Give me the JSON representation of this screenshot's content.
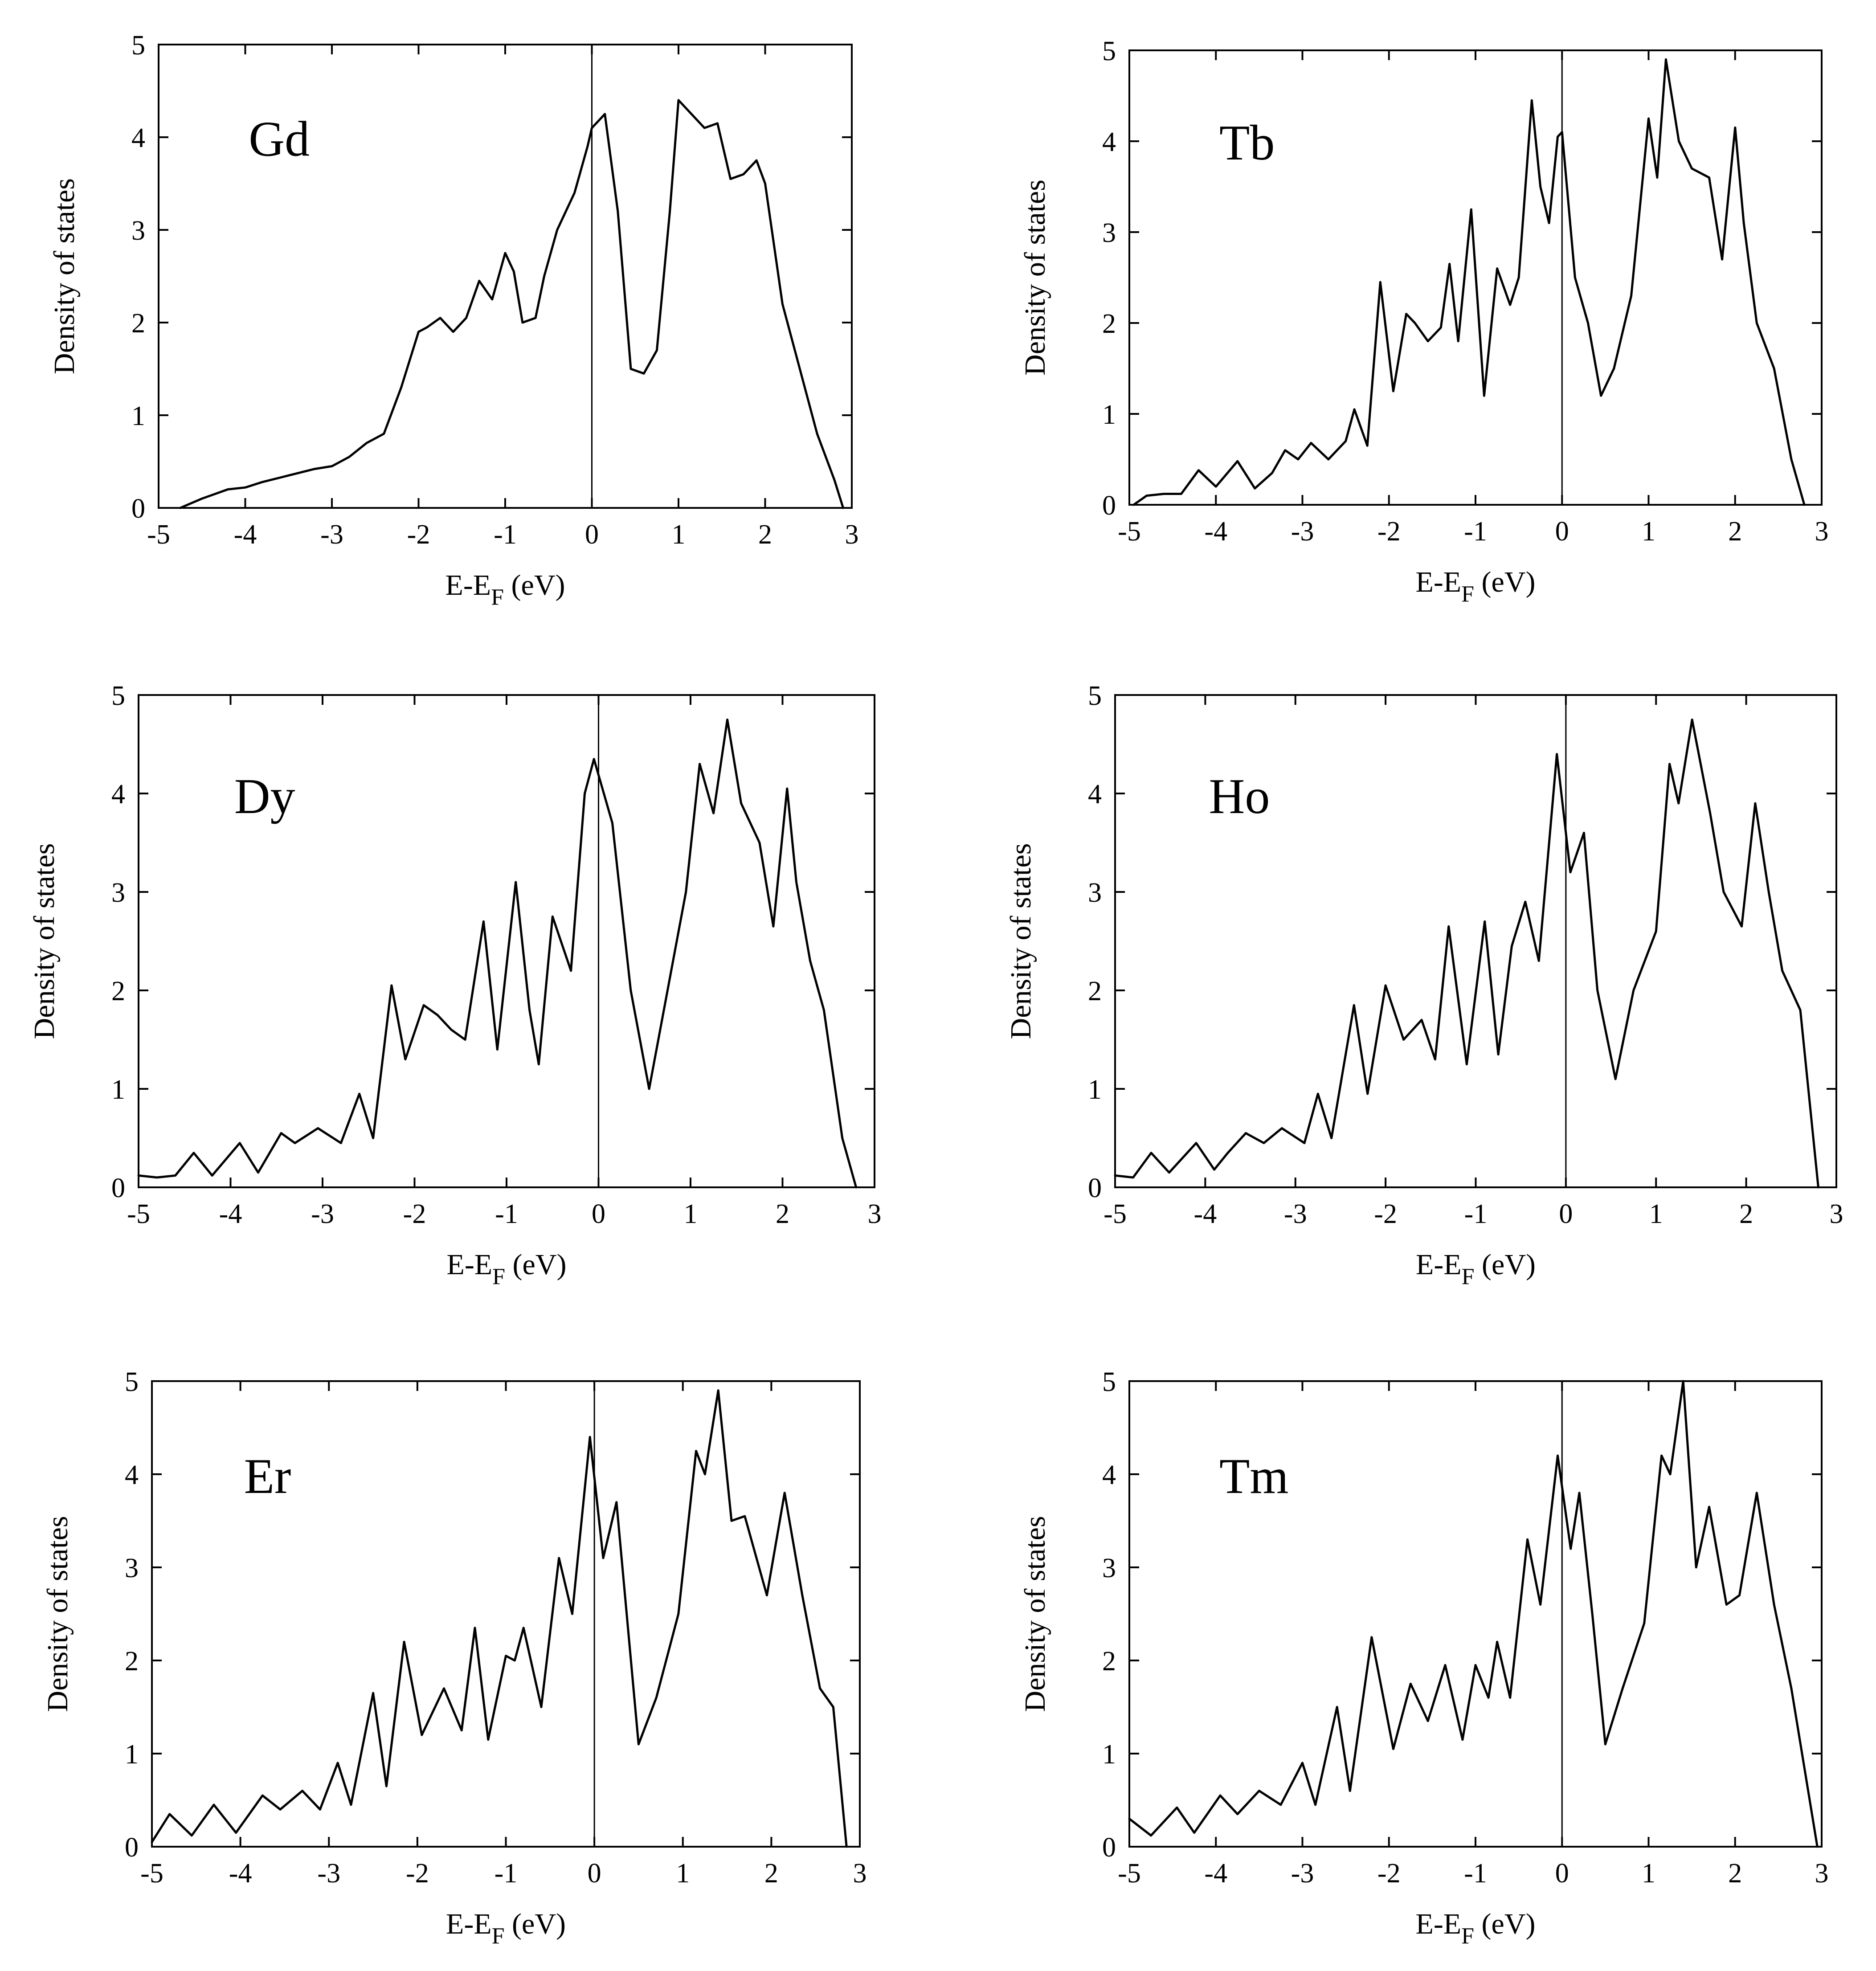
{
  "chart_data": [
    {
      "type": "line",
      "panel_label": "Gd",
      "xlabel": "E-E",
      "xlabel_sub": "F",
      "xlabel_unit": " (eV)",
      "ylabel": "Density of  states",
      "xlim": [
        -5,
        3
      ],
      "ylim": [
        0,
        5
      ],
      "xticks": [
        "-5",
        "-4",
        "-3",
        "-2",
        "-1",
        "0",
        "1",
        "2",
        "3"
      ],
      "yticks": [
        "0",
        "1",
        "2",
        "3",
        "4",
        "5"
      ],
      "fermi_line_x": 0,
      "series": [
        {
          "name": "Gd",
          "x": [
            -4.75,
            -4.5,
            -4.2,
            -4.0,
            -3.8,
            -3.5,
            -3.2,
            -3.0,
            -2.8,
            -2.6,
            -2.4,
            -2.2,
            -2.0,
            -1.9,
            -1.75,
            -1.6,
            -1.45,
            -1.3,
            -1.15,
            -1.0,
            -0.9,
            -0.8,
            -0.65,
            -0.55,
            -0.4,
            -0.2,
            -0.05,
            0.0,
            0.15,
            0.3,
            0.45,
            0.6,
            0.75,
            0.9,
            1.0,
            1.1,
            1.3,
            1.45,
            1.6,
            1.75,
            1.9,
            2.0,
            2.2,
            2.4,
            2.6,
            2.8,
            2.9
          ],
          "y": [
            0.0,
            0.1,
            0.2,
            0.22,
            0.28,
            0.35,
            0.42,
            0.45,
            0.55,
            0.7,
            0.8,
            1.3,
            1.9,
            1.95,
            2.05,
            1.9,
            2.05,
            2.45,
            2.25,
            2.75,
            2.55,
            2.0,
            2.05,
            2.5,
            3.0,
            3.4,
            3.9,
            4.1,
            4.25,
            3.2,
            1.5,
            1.45,
            1.7,
            3.2,
            4.4,
            4.3,
            4.1,
            4.15,
            3.55,
            3.6,
            3.75,
            3.5,
            2.2,
            1.5,
            0.8,
            0.3,
            0.0
          ]
        }
      ]
    },
    {
      "type": "line",
      "panel_label": "Tb",
      "xlabel": "E-E",
      "xlabel_sub": "F",
      "xlabel_unit": " (eV)",
      "ylabel": "Density of  states",
      "xlim": [
        -5,
        3
      ],
      "ylim": [
        0,
        5
      ],
      "xticks": [
        "-5",
        "-4",
        "-3",
        "-2",
        "-1",
        "0",
        "1",
        "2",
        "3"
      ],
      "yticks": [
        "0",
        "1",
        "2",
        "3",
        "4",
        "5"
      ],
      "fermi_line_x": 0,
      "series": [
        {
          "name": "Tb",
          "x": [
            -4.95,
            -4.8,
            -4.6,
            -4.4,
            -4.2,
            -4.0,
            -3.75,
            -3.55,
            -3.35,
            -3.2,
            -3.05,
            -2.9,
            -2.7,
            -2.5,
            -2.4,
            -2.25,
            -2.1,
            -1.95,
            -1.8,
            -1.7,
            -1.55,
            -1.4,
            -1.3,
            -1.2,
            -1.05,
            -0.9,
            -0.75,
            -0.6,
            -0.5,
            -0.35,
            -0.25,
            -0.15,
            -0.05,
            0.0,
            0.15,
            0.3,
            0.45,
            0.6,
            0.8,
            1.0,
            1.1,
            1.2,
            1.35,
            1.5,
            1.7,
            1.85,
            2.0,
            2.1,
            2.25,
            2.45,
            2.65,
            2.8
          ],
          "y": [
            0.0,
            0.1,
            0.12,
            0.12,
            0.38,
            0.2,
            0.48,
            0.18,
            0.35,
            0.6,
            0.5,
            0.68,
            0.5,
            0.7,
            1.05,
            0.65,
            2.45,
            1.25,
            2.1,
            2.0,
            1.8,
            1.95,
            2.65,
            1.8,
            3.25,
            1.2,
            2.6,
            2.2,
            2.5,
            4.45,
            3.5,
            3.1,
            4.05,
            4.1,
            2.5,
            2.0,
            1.2,
            1.5,
            2.3,
            4.25,
            3.6,
            4.9,
            4.0,
            3.7,
            3.6,
            2.7,
            4.15,
            3.1,
            2.0,
            1.5,
            0.5,
            0.0
          ]
        }
      ]
    },
    {
      "type": "line",
      "panel_label": "Dy",
      "xlabel": "E-E",
      "xlabel_sub": "F",
      "xlabel_unit": " (eV)",
      "ylabel": "Density of  states",
      "xlim": [
        -5,
        3
      ],
      "ylim": [
        0,
        5
      ],
      "xticks": [
        "-5",
        "-4",
        "-3",
        "-2",
        "-1",
        "0",
        "1",
        "2",
        "3"
      ],
      "yticks": [
        "0",
        "1",
        "2",
        "3",
        "4",
        "5"
      ],
      "fermi_line_x": 0,
      "series": [
        {
          "name": "Dy",
          "x": [
            -5.0,
            -4.8,
            -4.6,
            -4.4,
            -4.2,
            -3.9,
            -3.7,
            -3.45,
            -3.3,
            -3.05,
            -2.8,
            -2.6,
            -2.45,
            -2.25,
            -2.1,
            -1.9,
            -1.75,
            -1.6,
            -1.45,
            -1.25,
            -1.1,
            -0.9,
            -0.75,
            -0.65,
            -0.5,
            -0.3,
            -0.15,
            -0.05,
            0.15,
            0.35,
            0.55,
            0.75,
            0.95,
            1.1,
            1.25,
            1.4,
            1.55,
            1.75,
            1.9,
            2.05,
            2.15,
            2.3,
            2.45,
            2.65,
            2.8
          ],
          "y": [
            0.12,
            0.1,
            0.12,
            0.35,
            0.12,
            0.45,
            0.15,
            0.55,
            0.45,
            0.6,
            0.45,
            0.95,
            0.5,
            2.05,
            1.3,
            1.85,
            1.75,
            1.6,
            1.5,
            2.7,
            1.4,
            3.1,
            1.8,
            1.25,
            2.75,
            2.2,
            4.0,
            4.35,
            3.7,
            2.0,
            1.0,
            2.0,
            3.0,
            4.3,
            3.8,
            4.75,
            3.9,
            3.5,
            2.65,
            4.05,
            3.1,
            2.3,
            1.8,
            0.5,
            0.0
          ]
        }
      ]
    },
    {
      "type": "line",
      "panel_label": "Ho",
      "xlabel": "E-E",
      "xlabel_sub": "F",
      "xlabel_unit": " (eV)",
      "ylabel": "Density of  states",
      "xlim": [
        -5,
        3
      ],
      "ylim": [
        0,
        5
      ],
      "xticks": [
        "-5",
        "-4",
        "-3",
        "-2",
        "-1",
        "0",
        "1",
        "2",
        "3"
      ],
      "yticks": [
        "0",
        "1",
        "2",
        "3",
        "4",
        "5"
      ],
      "fermi_line_x": 0,
      "series": [
        {
          "name": "Ho",
          "x": [
            -5.0,
            -4.8,
            -4.6,
            -4.4,
            -4.1,
            -3.9,
            -3.75,
            -3.55,
            -3.35,
            -3.15,
            -2.9,
            -2.75,
            -2.6,
            -2.35,
            -2.2,
            -2.0,
            -1.8,
            -1.6,
            -1.45,
            -1.3,
            -1.1,
            -0.9,
            -0.75,
            -0.6,
            -0.45,
            -0.3,
            -0.1,
            0.05,
            0.2,
            0.35,
            0.55,
            0.75,
            1.0,
            1.15,
            1.25,
            1.4,
            1.6,
            1.75,
            1.95,
            2.1,
            2.25,
            2.4,
            2.6,
            2.8
          ],
          "y": [
            0.12,
            0.1,
            0.35,
            0.15,
            0.45,
            0.18,
            0.35,
            0.55,
            0.45,
            0.6,
            0.45,
            0.95,
            0.5,
            1.85,
            0.95,
            2.05,
            1.5,
            1.7,
            1.3,
            2.65,
            1.25,
            2.7,
            1.35,
            2.45,
            2.9,
            2.3,
            4.4,
            3.2,
            3.6,
            2.0,
            1.1,
            2.0,
            2.6,
            4.3,
            3.9,
            4.75,
            3.8,
            3.0,
            2.65,
            3.9,
            3.0,
            2.2,
            1.8,
            0.0
          ]
        }
      ]
    },
    {
      "type": "line",
      "panel_label": "Er",
      "xlabel": "E-E",
      "xlabel_sub": "F",
      "xlabel_unit": " (eV)",
      "ylabel": "Density of  states",
      "xlim": [
        -5,
        3
      ],
      "ylim": [
        0,
        5
      ],
      "xticks": [
        "-5",
        "-4",
        "-3",
        "-2",
        "-1",
        "0",
        "1",
        "2",
        "3"
      ],
      "yticks": [
        "0",
        "1",
        "2",
        "3",
        "4",
        "5"
      ],
      "fermi_line_x": 0,
      "series": [
        {
          "name": "Er",
          "x": [
            -5.0,
            -4.8,
            -4.55,
            -4.3,
            -4.05,
            -3.75,
            -3.55,
            -3.3,
            -3.1,
            -2.9,
            -2.75,
            -2.5,
            -2.35,
            -2.15,
            -1.95,
            -1.7,
            -1.5,
            -1.35,
            -1.2,
            -1.0,
            -0.9,
            -0.8,
            -0.6,
            -0.4,
            -0.25,
            -0.05,
            0.1,
            0.25,
            0.5,
            0.7,
            0.95,
            1.15,
            1.25,
            1.4,
            1.55,
            1.7,
            1.95,
            2.15,
            2.35,
            2.55,
            2.7,
            2.85
          ],
          "y": [
            0.05,
            0.35,
            0.12,
            0.45,
            0.15,
            0.55,
            0.4,
            0.6,
            0.4,
            0.9,
            0.45,
            1.65,
            0.65,
            2.2,
            1.2,
            1.7,
            1.25,
            2.35,
            1.15,
            2.05,
            2.0,
            2.35,
            1.5,
            3.1,
            2.5,
            4.4,
            3.1,
            3.7,
            1.1,
            1.6,
            2.5,
            4.25,
            4.0,
            4.9,
            3.5,
            3.55,
            2.7,
            3.8,
            2.7,
            1.7,
            1.5,
            0.0
          ]
        }
      ]
    },
    {
      "type": "line",
      "panel_label": "Tm",
      "xlabel": "E-E",
      "xlabel_sub": "F",
      "xlabel_unit": " (eV)",
      "ylabel": "Density of  states",
      "xlim": [
        -5,
        3
      ],
      "ylim": [
        0,
        5
      ],
      "xticks": [
        "-5",
        "-4",
        "-3",
        "-2",
        "-1",
        "0",
        "1",
        "2",
        "3"
      ],
      "yticks": [
        "0",
        "1",
        "2",
        "3",
        "4",
        "5"
      ],
      "fermi_line_x": 0,
      "series": [
        {
          "name": "Tm",
          "x": [
            -5.0,
            -4.75,
            -4.45,
            -4.25,
            -3.95,
            -3.75,
            -3.5,
            -3.25,
            -3.0,
            -2.85,
            -2.6,
            -2.45,
            -2.2,
            -1.95,
            -1.75,
            -1.55,
            -1.35,
            -1.15,
            -1.0,
            -0.85,
            -0.75,
            -0.6,
            -0.4,
            -0.25,
            -0.05,
            0.1,
            0.2,
            0.35,
            0.5,
            0.7,
            0.95,
            1.15,
            1.25,
            1.4,
            1.55,
            1.7,
            1.9,
            2.05,
            2.25,
            2.45,
            2.65,
            2.95
          ],
          "y": [
            0.3,
            0.12,
            0.42,
            0.15,
            0.55,
            0.35,
            0.6,
            0.45,
            0.9,
            0.45,
            1.5,
            0.6,
            2.25,
            1.05,
            1.75,
            1.35,
            1.95,
            1.15,
            1.95,
            1.6,
            2.2,
            1.6,
            3.3,
            2.6,
            4.2,
            3.2,
            3.8,
            2.5,
            1.1,
            1.7,
            2.4,
            4.2,
            4.0,
            5.0,
            3.0,
            3.65,
            2.6,
            2.7,
            3.8,
            2.6,
            1.7,
            0.0
          ]
        }
      ]
    }
  ]
}
